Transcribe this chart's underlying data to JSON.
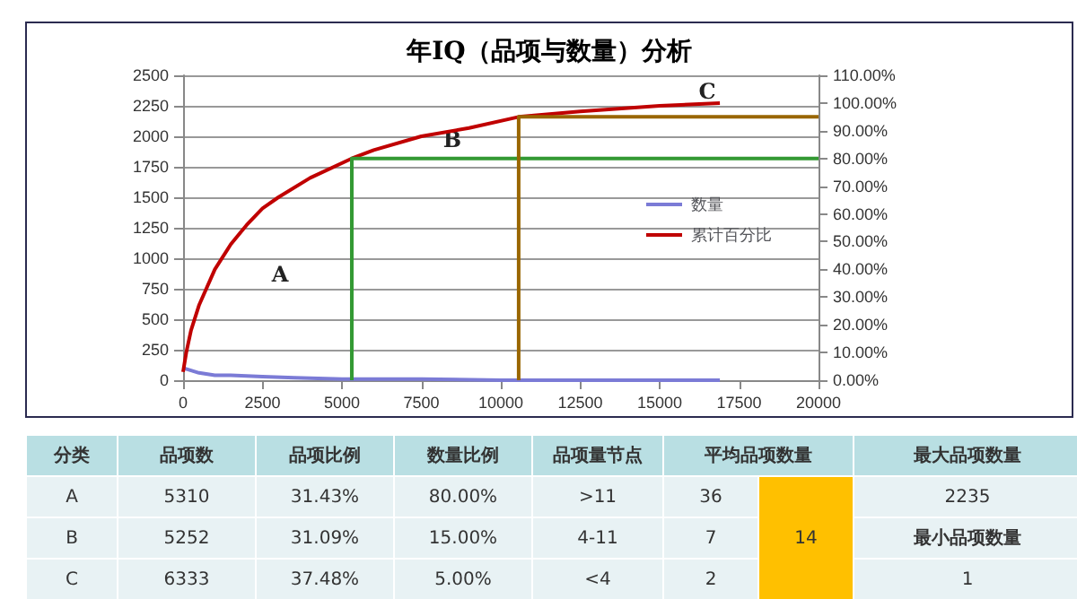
{
  "chart_data": [
    {
      "type": "line",
      "title": "年IQ（品项与数量）分析",
      "xlim": [
        0,
        20000
      ],
      "xticks": [
        0,
        2500,
        5000,
        7500,
        10000,
        12500,
        15000,
        17500,
        20000
      ],
      "ylim": [
        0,
        2500
      ],
      "yticks": [
        0,
        250,
        500,
        750,
        1000,
        1250,
        1500,
        1750,
        2000,
        2250,
        2500
      ],
      "y2lim": [
        0,
        110
      ],
      "y2ticks": [
        {
          "value": 0,
          "label": "0.00%"
        },
        {
          "value": 10,
          "label": "10.00%"
        },
        {
          "value": 20,
          "label": "20.00%"
        },
        {
          "value": 30,
          "label": "30.00%"
        },
        {
          "value": 40,
          "label": "40.00%"
        },
        {
          "value": 50,
          "label": "50.00%"
        },
        {
          "value": 60,
          "label": "60.00%"
        },
        {
          "value": 70,
          "label": "70.00%"
        },
        {
          "value": 80,
          "label": "80.00%"
        },
        {
          "value": 90,
          "label": "90.00%"
        },
        {
          "value": 100,
          "label": "100.00%"
        },
        {
          "value": 110,
          "label": "110.00%"
        }
      ],
      "grid": "y",
      "legend": "right",
      "series": [
        {
          "name": "数量",
          "color": "#7b7bd6",
          "x": [
            0,
            250,
            500,
            1000,
            1500,
            2500,
            3500,
            5000,
            7500,
            10000,
            12500,
            15000,
            16895
          ],
          "values": [
            100,
            80,
            60,
            40,
            40,
            30,
            20,
            10,
            10,
            0,
            0,
            0,
            0
          ]
        },
        {
          "name": "累计百分比",
          "color": "#c00000",
          "axis": "y2",
          "x": [
            0,
            100,
            250,
            500,
            1000,
            1500,
            2000,
            2500,
            3000,
            4000,
            5310,
            6000,
            7500,
            9000,
            10562,
            12500,
            15000,
            16895
          ],
          "values": [
            3,
            10,
            18,
            27,
            40,
            49,
            56,
            62,
            66,
            73,
            80,
            83,
            88,
            91,
            95,
            97,
            99,
            100
          ]
        },
        {
          "color": "#339933",
          "axis": "y2",
          "x": [
            5310,
            5310,
            20000
          ],
          "values": [
            0,
            80,
            80
          ]
        },
        {
          "color": "#996600",
          "axis": "y2",
          "x": [
            10562,
            10562,
            20000
          ],
          "values": [
            0,
            95,
            95
          ]
        }
      ],
      "annotations": [
        "A",
        "B",
        "C"
      ]
    },
    {
      "type": "other",
      "annotations": [
        "分类",
        "品项数",
        "品项比例",
        "数量比例",
        "品项量节点",
        "平均品项数量",
        "最大品项数量",
        "A",
        "5310",
        "31.43%",
        "80.00%",
        ">11",
        "36",
        "14",
        "2235",
        "B",
        "5252",
        "31.09%",
        "15.00%",
        "4-11",
        "7",
        "最小品项数量",
        "C",
        "6333",
        "37.48%",
        "5.00%",
        "<4",
        "2",
        "1"
      ]
    }
  ]
}
